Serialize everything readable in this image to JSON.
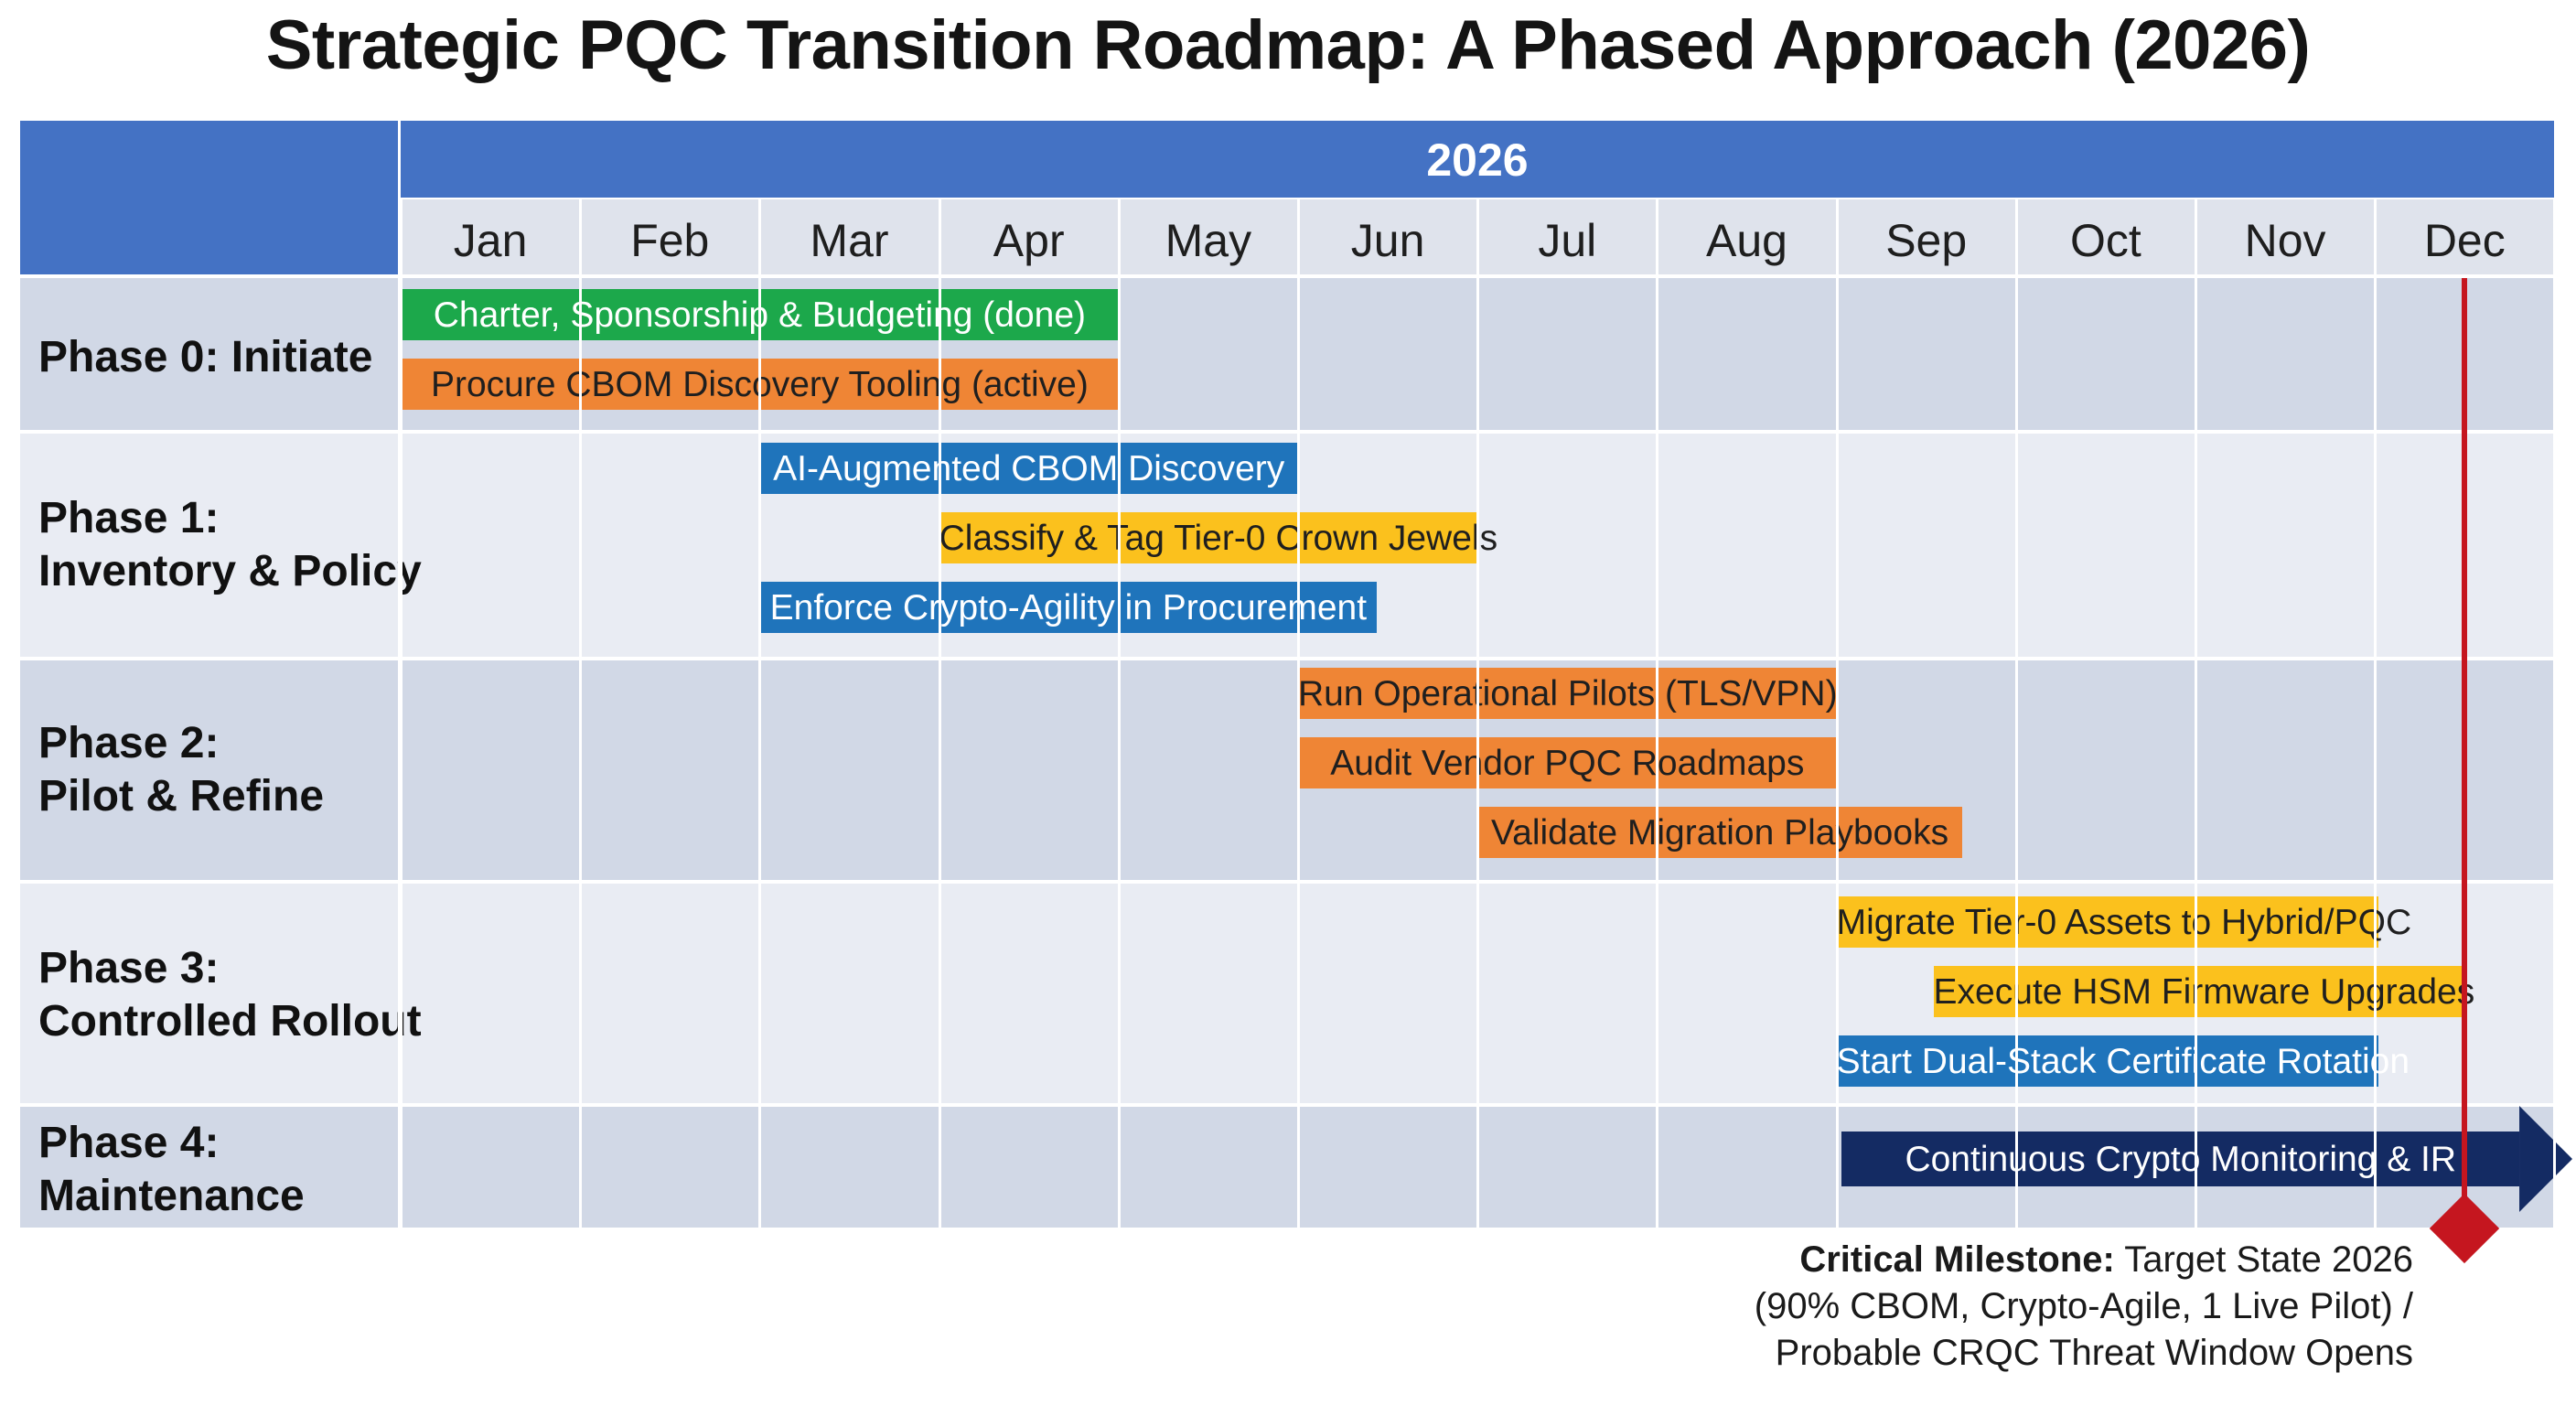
{
  "title": "Strategic PQC Transition Roadmap: A Phased Approach (2026)",
  "colors": {
    "header_blue": "#4472c4",
    "band_dark": "#d1d8e6",
    "band_light": "#e9ecf3",
    "green": "#1ca84b",
    "orange": "#ef8535",
    "yellow": "#fbc11d",
    "blue": "#1f74bb",
    "navy": "#142b63",
    "milestone_red": "#c5161f"
  },
  "chart_data": {
    "type": "gantt",
    "title": "Strategic PQC Transition Roadmap: A Phased Approach (2026)",
    "year": "2026",
    "months": [
      "Jan",
      "Feb",
      "Mar",
      "Apr",
      "May",
      "Jun",
      "Jul",
      "Aug",
      "Sep",
      "Oct",
      "Nov",
      "Dec"
    ],
    "phases": [
      {
        "label": "Phase 0: Initiate",
        "band": "dark",
        "tasks": [
          {
            "label": "Charter, Sponsorship & Budgeting (done)",
            "start": 0,
            "end": 4,
            "color": "green"
          },
          {
            "label": "Procure CBOM Discovery Tooling (active)",
            "start": 0,
            "end": 4,
            "color": "orange"
          }
        ]
      },
      {
        "label": "Phase 1:\nInventory & Policy",
        "band": "light",
        "tasks": [
          {
            "label": "AI-Augmented CBOM Discovery",
            "start": 2,
            "end": 5,
            "color": "blue"
          },
          {
            "label": "Classify & Tag Tier-0 Crown Jewels",
            "start": 3,
            "end": 6,
            "color": "yellow"
          },
          {
            "label": "Enforce Crypto-Agility in Procurement",
            "start": 2,
            "end": 5.44,
            "color": "blue"
          }
        ]
      },
      {
        "label": "Phase 2:\nPilot & Refine",
        "band": "dark",
        "tasks": [
          {
            "label": "Run Operational Pilots (TLS/VPN)",
            "start": 5,
            "end": 8,
            "color": "orange"
          },
          {
            "label": "Audit Vendor PQC Roadmaps",
            "start": 5,
            "end": 8,
            "color": "orange"
          },
          {
            "label": "Validate Migration Playbooks",
            "start": 6,
            "end": 8.7,
            "color": "orange"
          }
        ]
      },
      {
        "label": "Phase 3:\nControlled Rollout",
        "band": "light",
        "tasks": [
          {
            "label": "Migrate Tier-0 Assets to Hybrid/PQC",
            "start": 8,
            "end": 11.02,
            "color": "yellow"
          },
          {
            "label": "Execute HSM Firmware Upgrades",
            "start": 8.54,
            "end": 11.5,
            "color": "yellow"
          },
          {
            "label": "Start Dual-Stack Certificate Rotation",
            "start": 8,
            "end": 11.02,
            "color": "blue"
          }
        ]
      },
      {
        "label": "Phase 4:\nMaintenance",
        "band": "dark",
        "tasks": [
          {
            "label": "Continuous Crypto Monitoring & IR",
            "start": 8.03,
            "end": 12.1,
            "color": "navy",
            "arrow": true
          }
        ]
      }
    ],
    "milestone": {
      "month_position": 11.5,
      "label_bold": "Critical Milestone:",
      "label_rest": " Target State 2026",
      "line2": "(90% CBOM, Crypto-Agile, 1 Live Pilot) /",
      "line3": "Probable CRQC Threat Window Opens"
    }
  }
}
